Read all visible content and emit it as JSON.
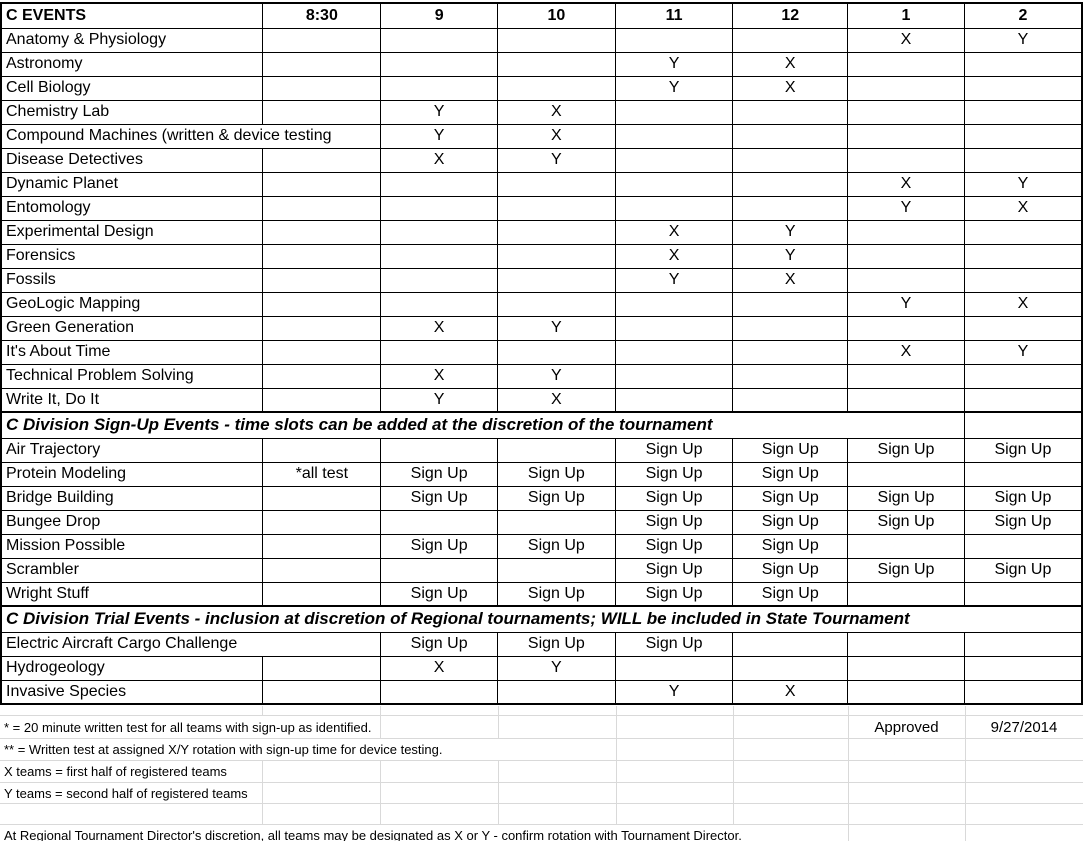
{
  "colors": {
    "border": "#000000",
    "gridline": "#d9d9d9",
    "background": "#ffffff",
    "text": "#000000"
  },
  "table": {
    "header": {
      "label": "C EVENTS",
      "times": [
        "8:30",
        "9",
        "10",
        "11",
        "12",
        "1",
        "2"
      ]
    },
    "rows": [
      {
        "name": "Anatomy & Physiology",
        "cells": [
          "",
          "",
          "",
          "",
          "",
          "X",
          "Y"
        ]
      },
      {
        "name": "Astronomy",
        "cells": [
          "",
          "",
          "",
          "Y",
          "X",
          "",
          ""
        ]
      },
      {
        "name": "Cell Biology",
        "cells": [
          "",
          "",
          "",
          "Y",
          "X",
          "",
          ""
        ]
      },
      {
        "name": "Chemistry Lab",
        "cells": [
          "",
          "Y",
          "X",
          "",
          "",
          "",
          ""
        ]
      },
      {
        "name": "Compound Machines (written & device testing",
        "name_span": 2,
        "cells": [
          "",
          "Y",
          "X",
          "",
          "",
          "",
          ""
        ]
      },
      {
        "name": "Disease Detectives",
        "cells": [
          "",
          "X",
          "Y",
          "",
          "",
          "",
          ""
        ]
      },
      {
        "name": "Dynamic Planet",
        "cells": [
          "",
          "",
          "",
          "",
          "",
          "X",
          "Y"
        ]
      },
      {
        "name": "Entomology",
        "cells": [
          "",
          "",
          "",
          "",
          "",
          "Y",
          "X"
        ]
      },
      {
        "name": "Experimental Design",
        "cells": [
          "",
          "",
          "",
          "X",
          "Y",
          "",
          ""
        ]
      },
      {
        "name": "Forensics",
        "cells": [
          "",
          "",
          "",
          "X",
          "Y",
          "",
          ""
        ]
      },
      {
        "name": "Fossils",
        "cells": [
          "",
          "",
          "",
          "Y",
          "X",
          "",
          ""
        ]
      },
      {
        "name": "GeoLogic Mapping",
        "cells": [
          "",
          "",
          "",
          "",
          "",
          "Y",
          "X"
        ]
      },
      {
        "name": "Green Generation",
        "cells": [
          "",
          "X",
          "Y",
          "",
          "",
          "",
          ""
        ]
      },
      {
        "name": "It's About Time",
        "cells": [
          "",
          "",
          "",
          "",
          "",
          "X",
          "Y"
        ]
      },
      {
        "name": "Technical Problem Solving",
        "cells": [
          "",
          "X",
          "Y",
          "",
          "",
          "",
          ""
        ]
      },
      {
        "name": "Write It, Do It",
        "cells": [
          "",
          "Y",
          "X",
          "",
          "",
          "",
          ""
        ]
      },
      {
        "section": "C Division Sign-Up Events - time slots can be added at the discretion of the tournament",
        "span": 7,
        "trailing_empty": true
      },
      {
        "name": "Air Trajectory",
        "cells": [
          "",
          "",
          "",
          "Sign Up",
          "Sign Up",
          "Sign Up",
          "Sign Up"
        ]
      },
      {
        "name": "Protein Modeling",
        "cells": [
          "*all test",
          "Sign Up",
          "Sign Up",
          "Sign Up",
          "Sign Up",
          "",
          ""
        ]
      },
      {
        "name": "Bridge Building",
        "cells": [
          "",
          "Sign Up",
          "Sign Up",
          "Sign Up",
          "Sign Up",
          "Sign Up",
          "Sign Up"
        ]
      },
      {
        "name": "Bungee Drop",
        "cells": [
          "",
          "",
          "",
          "Sign Up",
          "Sign Up",
          "Sign Up",
          "Sign Up"
        ]
      },
      {
        "name": "Mission Possible",
        "cells": [
          "",
          "Sign Up",
          "Sign Up",
          "Sign Up",
          "Sign Up",
          "",
          ""
        ]
      },
      {
        "name": "Scrambler",
        "cells": [
          "",
          "",
          "",
          "Sign Up",
          "Sign Up",
          "Sign Up",
          "Sign Up"
        ]
      },
      {
        "name": "Wright Stuff",
        "cells": [
          "",
          "Sign Up",
          "Sign Up",
          "Sign Up",
          "Sign Up",
          "",
          ""
        ]
      },
      {
        "section": "C Division Trial Events - inclusion at discretion of Regional tournaments; WILL be included in State Tournament",
        "span": 8,
        "trailing_empty": false
      },
      {
        "name": "Electric Aircraft Cargo Challenge",
        "name_span": 2,
        "cells": [
          "",
          "Sign Up",
          "Sign Up",
          "Sign Up",
          "",
          "",
          ""
        ]
      },
      {
        "name": "Hydrogeology",
        "cells": [
          "",
          "X",
          "Y",
          "",
          "",
          "",
          ""
        ]
      },
      {
        "name": "Invasive Species",
        "cells": [
          "",
          "",
          "",
          "Y",
          "X",
          "",
          ""
        ]
      }
    ]
  },
  "footnotes": {
    "note1": "* = 20 minute written test for all teams with sign-up as identified.",
    "note2": "** = Written test at assigned X/Y rotation with sign-up time for device testing.",
    "note3": "X teams = first half of registered teams",
    "note4": "Y teams = second half of registered teams",
    "note5": "At Regional Tournament Director's discretion, all teams may be designated as X or Y - confirm rotation with Tournament Director."
  },
  "approval": {
    "label": "Approved",
    "date": "9/27/2014"
  }
}
